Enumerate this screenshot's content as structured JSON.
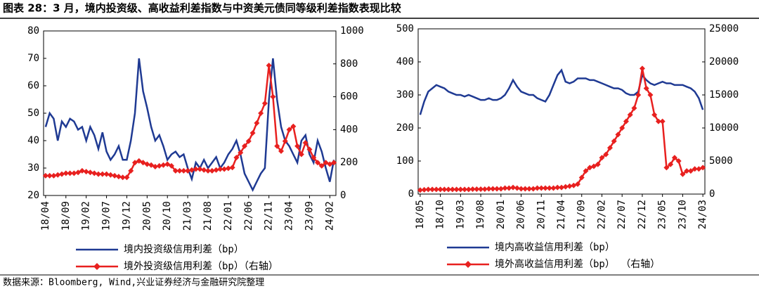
{
  "title": "图表 28：3 月，境内投资级、高收益利差指数与中资美元债同等级利差指数表现比较",
  "source": "数据来源：Bloomberg, Wind,兴业证券经济与金融研究院整理",
  "chart_data": [
    {
      "type": "line",
      "categories": [
        "18/04",
        null,
        null,
        null,
        null,
        "18/09",
        null,
        null,
        null,
        null,
        "19/02",
        null,
        null,
        null,
        null,
        "19/07",
        null,
        null,
        null,
        null,
        "19/12",
        null,
        null,
        null,
        null,
        "20/05",
        null,
        null,
        null,
        null,
        "20/10",
        null,
        null,
        null,
        null,
        "21/03",
        null,
        null,
        null,
        null,
        "21/08",
        null,
        null,
        null,
        null,
        "22/01",
        null,
        null,
        null,
        null,
        "22/06",
        null,
        null,
        null,
        null,
        "22/11",
        null,
        null,
        null,
        null,
        "23/04",
        null,
        null,
        null,
        null,
        "23/09",
        null,
        null,
        null,
        null,
        "24/02",
        null
      ],
      "series": [
        {
          "name": "境内投资级信用利差（bp）",
          "color": "#1f3a93",
          "values": [
            45,
            50,
            48,
            40,
            47,
            45,
            48,
            47,
            44,
            45,
            40,
            45,
            42,
            37,
            43,
            36,
            33,
            35,
            38,
            33,
            33,
            40,
            50,
            70,
            58,
            52,
            45,
            40,
            42,
            38,
            33,
            35,
            36,
            34,
            35,
            30,
            26,
            32,
            30,
            33,
            30,
            32,
            34,
            30,
            32,
            35,
            37,
            40,
            35,
            28,
            25,
            22,
            25,
            28,
            30,
            55,
            70,
            55,
            45,
            40,
            38,
            35,
            32,
            40,
            42,
            35,
            32,
            40,
            36,
            30,
            25,
            33
          ]
        },
        {
          "name": "境外投资级信用利差（bp）（右轴）",
          "color": "#e8201f",
          "axis": "y2",
          "marker": "diamond",
          "values": [
            120,
            120,
            120,
            125,
            130,
            135,
            135,
            135,
            140,
            150,
            145,
            140,
            135,
            130,
            130,
            130,
            125,
            120,
            115,
            110,
            110,
            150,
            200,
            210,
            200,
            190,
            185,
            175,
            180,
            185,
            190,
            180,
            150,
            150,
            150,
            150,
            155,
            160,
            160,
            155,
            150,
            150,
            155,
            160,
            160,
            165,
            170,
            230,
            260,
            300,
            330,
            380,
            440,
            500,
            560,
            790,
            600,
            300,
            270,
            330,
            400,
            420,
            300,
            250,
            320,
            280,
            230,
            200,
            180,
            200,
            190,
            200
          ]
        }
      ],
      "ylim": [
        20,
        80
      ],
      "yticks": [
        20,
        30,
        40,
        50,
        60,
        70,
        80
      ],
      "y2lim": [
        0,
        1000
      ],
      "y2ticks": [
        0,
        200,
        400,
        600,
        800,
        1000
      ]
    },
    {
      "type": "line",
      "categories": [
        "18/05",
        null,
        null,
        null,
        null,
        "18/10",
        null,
        null,
        null,
        null,
        "19/03",
        null,
        null,
        null,
        null,
        "19/08",
        null,
        null,
        null,
        null,
        "20/01",
        null,
        null,
        null,
        null,
        "20/06",
        null,
        null,
        null,
        null,
        "20/11",
        null,
        null,
        null,
        null,
        "21/04",
        null,
        null,
        null,
        null,
        "21/09",
        null,
        null,
        null,
        null,
        "22/02",
        null,
        null,
        null,
        null,
        "22/07",
        null,
        null,
        null,
        null,
        "22/12",
        null,
        null,
        null,
        null,
        "23/05",
        null,
        null,
        null,
        null,
        "23/10",
        null,
        null,
        null,
        null,
        "24/03"
      ],
      "series": [
        {
          "name": "境内高收益信用利差（bp）",
          "color": "#1f3a93",
          "values": [
            240,
            280,
            310,
            320,
            330,
            325,
            320,
            310,
            305,
            300,
            300,
            295,
            300,
            295,
            290,
            285,
            285,
            290,
            285,
            285,
            290,
            300,
            320,
            345,
            325,
            310,
            305,
            300,
            300,
            290,
            285,
            280,
            300,
            330,
            360,
            375,
            340,
            335,
            340,
            350,
            350,
            350,
            345,
            345,
            340,
            335,
            330,
            325,
            320,
            320,
            315,
            305,
            300,
            300,
            310,
            360,
            345,
            335,
            330,
            335,
            340,
            335,
            335,
            330,
            330,
            330,
            325,
            320,
            310,
            290,
            255
          ]
        },
        {
          "name": "境外高收益信用利差（bp） （右轴）",
          "color": "#e8201f",
          "axis": "y2",
          "marker": "diamond",
          "values": [
            600,
            650,
            700,
            700,
            700,
            700,
            700,
            700,
            700,
            700,
            700,
            700,
            700,
            750,
            750,
            750,
            750,
            800,
            800,
            800,
            800,
            900,
            900,
            1000,
            900,
            800,
            800,
            800,
            800,
            900,
            900,
            900,
            900,
            900,
            1000,
            1000,
            1100,
            1200,
            1300,
            1500,
            2500,
            3500,
            4000,
            4200,
            4500,
            5500,
            6000,
            7000,
            8000,
            9000,
            10000,
            11000,
            12000,
            13000,
            15000,
            19000,
            16000,
            15000,
            12000,
            11000,
            11000,
            4000,
            4500,
            5500,
            5000,
            3000,
            3500,
            3500,
            3800,
            3800,
            4000
          ]
        }
      ],
      "ylim": [
        0,
        500
      ],
      "yticks": [
        0,
        100,
        200,
        300,
        400,
        500
      ],
      "y2lim": [
        0,
        25000
      ],
      "y2ticks": [
        0,
        5000,
        10000,
        15000,
        20000,
        25000
      ]
    }
  ]
}
